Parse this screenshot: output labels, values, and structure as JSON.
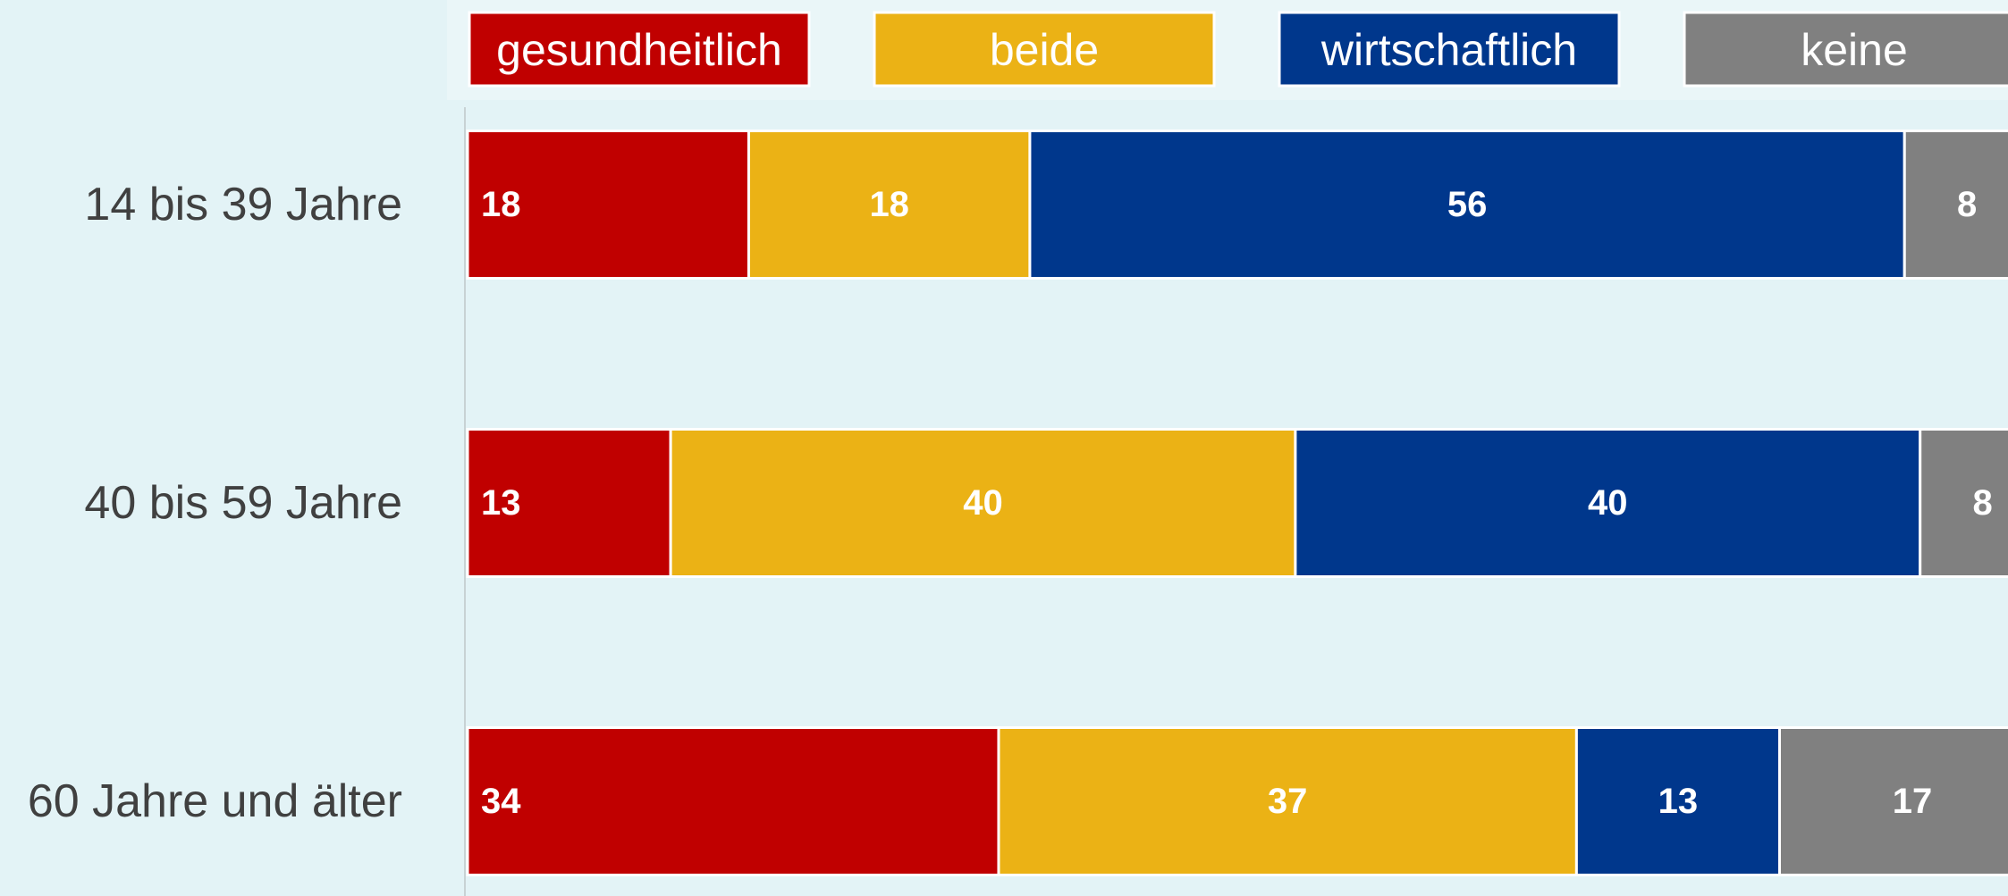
{
  "chart_data": {
    "type": "stacked-bar-horizontal",
    "categories": [
      "14 bis 39 Jahre",
      "40 bis 59 Jahre",
      "60 Jahre und älter"
    ],
    "series": [
      {
        "name": "gesundheitlich",
        "color": "#c00000",
        "values": [
          18,
          13,
          34
        ]
      },
      {
        "name": "beide",
        "color": "#ebb215",
        "values": [
          18,
          40,
          37
        ]
      },
      {
        "name": "wirtschaftlich",
        "color": "#00378c",
        "values": [
          56,
          40,
          13
        ]
      },
      {
        "name": "keine",
        "color": "#808080",
        "values": [
          8,
          8,
          17
        ]
      }
    ],
    "xlim": [
      0,
      100
    ],
    "legend": "top"
  }
}
